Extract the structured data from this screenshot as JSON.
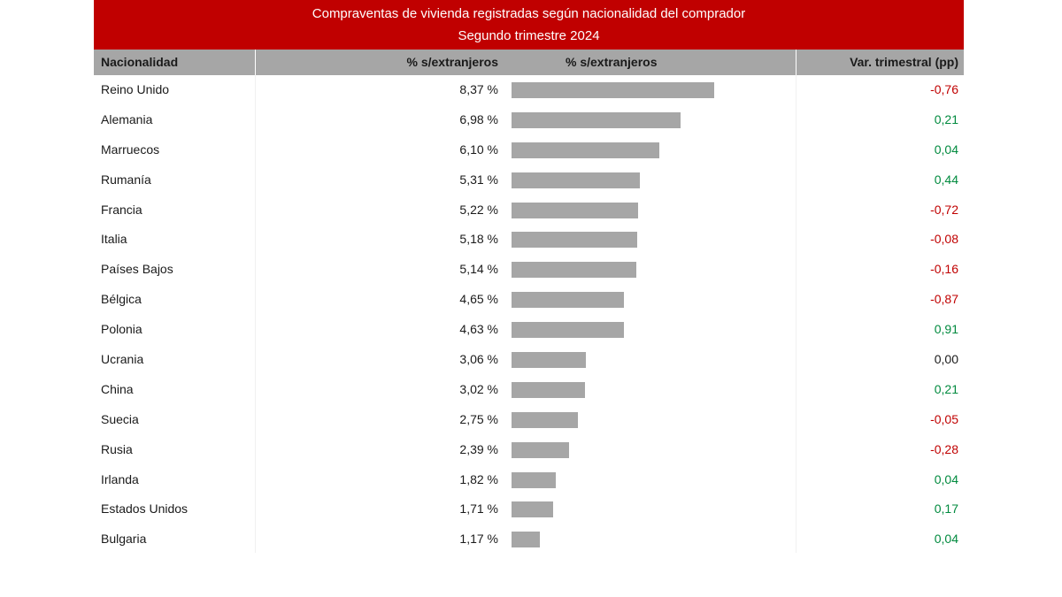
{
  "title": {
    "line1": "Compraventas de vivienda registradas según nacionalidad del comprador",
    "line2": "Segundo trimestre 2024"
  },
  "headers": {
    "nationality": "Nacionalidad",
    "pct": "% s/extranjeros",
    "pct_bar": "% s/extranjeros",
    "var": "Var. trimestral (pp)"
  },
  "colors": {
    "title_bg": "#c00000",
    "header_bg": "#a6a6a6",
    "bar": "#a6a6a6",
    "negative": "#c00000",
    "positive": "#008a3e",
    "zero": "#1a1a1a"
  },
  "rows": [
    {
      "name": "Reino Unido",
      "pct_label": "8,37 %",
      "var_label": "-0,76"
    },
    {
      "name": "Alemania",
      "pct_label": "6,98 %",
      "var_label": "0,21"
    },
    {
      "name": "Marruecos",
      "pct_label": "6,10 %",
      "var_label": "0,04"
    },
    {
      "name": "Rumanía",
      "pct_label": "5,31 %",
      "var_label": "0,44"
    },
    {
      "name": "Francia",
      "pct_label": "5,22 %",
      "var_label": "-0,72"
    },
    {
      "name": "Italia",
      "pct_label": "5,18 %",
      "var_label": "-0,08"
    },
    {
      "name": "Países Bajos",
      "pct_label": "5,14 %",
      "var_label": "-0,16"
    },
    {
      "name": "Bélgica",
      "pct_label": "4,65 %",
      "var_label": "-0,87"
    },
    {
      "name": "Polonia",
      "pct_label": "4,63 %",
      "var_label": "0,91"
    },
    {
      "name": "Ucrania",
      "pct_label": "3,06 %",
      "var_label": "0,00"
    },
    {
      "name": "China",
      "pct_label": "3,02 %",
      "var_label": "0,21"
    },
    {
      "name": "Suecia",
      "pct_label": "2,75 %",
      "var_label": "-0,05"
    },
    {
      "name": "Rusia",
      "pct_label": "2,39 %",
      "var_label": "-0,28"
    },
    {
      "name": "Irlanda",
      "pct_label": "1,82 %",
      "var_label": "0,04"
    },
    {
      "name": "Estados Unidos",
      "pct_label": "1,71 %",
      "var_label": "0,17"
    },
    {
      "name": "Bulgaria",
      "pct_label": "1,17 %",
      "var_label": "0,04"
    }
  ],
  "chart_data": {
    "type": "bar",
    "orientation": "horizontal",
    "categories": [
      "Reino Unido",
      "Alemania",
      "Marruecos",
      "Rumanía",
      "Francia",
      "Italia",
      "Países Bajos",
      "Bélgica",
      "Polonia",
      "Ucrania",
      "China",
      "Suecia",
      "Rusia",
      "Irlanda",
      "Estados Unidos",
      "Bulgaria"
    ],
    "values": [
      8.37,
      6.98,
      6.1,
      5.31,
      5.22,
      5.18,
      5.14,
      4.65,
      4.63,
      3.06,
      3.02,
      2.75,
      2.39,
      1.82,
      1.71,
      1.17
    ],
    "var_trimestral": [
      -0.76,
      0.21,
      0.04,
      0.44,
      -0.72,
      -0.08,
      -0.16,
      -0.87,
      0.91,
      0.0,
      0.21,
      -0.05,
      -0.28,
      0.04,
      0.17,
      0.04
    ],
    "title": "Compraventas de vivienda registradas según nacionalidad del comprador",
    "subtitle": "Segundo trimestre 2024",
    "xlabel": "% s/extranjeros",
    "ylabel": "",
    "xlim": [
      0,
      8.37
    ],
    "grid": false
  }
}
